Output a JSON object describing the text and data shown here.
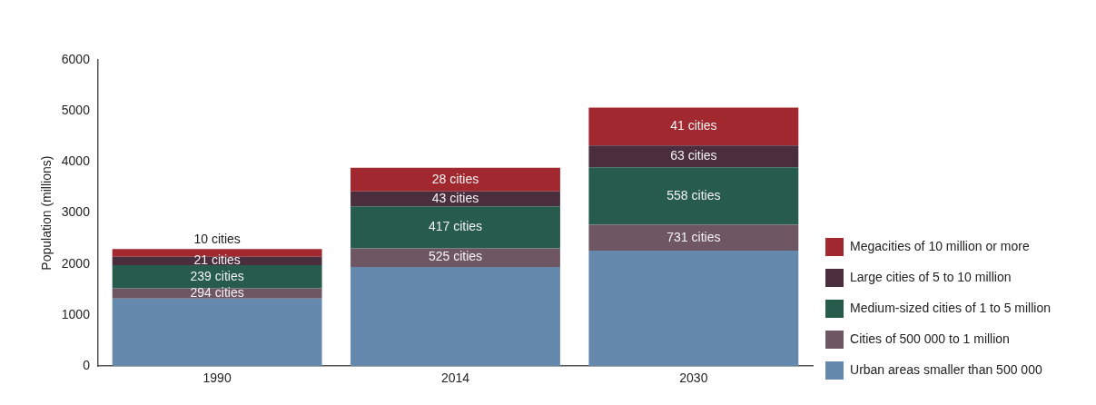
{
  "chart_data": {
    "type": "bar",
    "stacked": true,
    "ylabel": "Population (millions)",
    "categories": [
      "1990",
      "2014",
      "2030"
    ],
    "series": [
      {
        "name": "Urban areas smaller than 500 000",
        "color": "#6589ad",
        "values": [
          1325,
          1945,
          2265
        ]
      },
      {
        "name": "Cities of 500 000 to 1 million",
        "color": "#6e5763",
        "values": [
          200,
          365,
          505
        ]
      },
      {
        "name": "Medium-sized cities of 1 to 5 million",
        "color": "#275b4c",
        "values": [
          455,
          820,
          1125
        ]
      },
      {
        "name": "Large cities of 5 to 10 million",
        "color": "#4a2e3d",
        "values": [
          165,
          295,
          430
        ]
      },
      {
        "name": "Megacities of 10 million or more",
        "color": "#a2282f",
        "values": [
          150,
          460,
          740
        ]
      }
    ],
    "ylim": [
      0,
      6000
    ],
    "yticks": [
      0,
      1000,
      2000,
      3000,
      4000,
      5000,
      6000
    ],
    "grid": false,
    "legend": "right",
    "annotations": [
      "10 cities",
      "28 cities",
      "41 cities",
      "21 cities",
      "43 cities",
      "63 cities",
      "239 cities",
      "417 cities",
      "558 cities",
      "294 cities",
      "525 cities",
      "731 cities"
    ]
  }
}
